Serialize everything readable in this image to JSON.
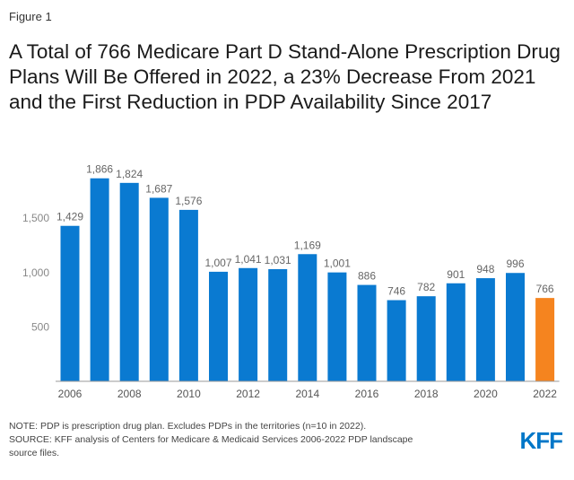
{
  "figure_label": "Figure 1",
  "title": "A Total of 766 Medicare Part D Stand-Alone Prescription Drug Plans Will Be Offered in 2022, a 23% Decrease From 2021 and the First Reduction in PDP Availability Since 2017",
  "notes": {
    "note": "NOTE: PDP is prescription drug plan. Excludes PDPs in the territories (n=10 in 2022).",
    "source_line1": "SOURCE: KFF analysis of Centers for Medicare & Medicaid Services 2006-2022 PDP landscape",
    "source_line2": "source files."
  },
  "logo_text": "KFF",
  "colors": {
    "bar": "#0a7ad1",
    "highlight": "#f5841f",
    "axis": "#888888",
    "label": "#666666"
  },
  "chart_data": {
    "type": "bar",
    "title": "A Total of 766 Medicare Part D Stand-Alone Prescription Drug Plans Will Be Offered in 2022, a 23% Decrease From 2021 and the First Reduction in PDP Availability Since 2017",
    "xlabel": "",
    "ylabel": "",
    "categories": [
      "2006",
      "2007",
      "2008",
      "2009",
      "2010",
      "2011",
      "2012",
      "2013",
      "2014",
      "2015",
      "2016",
      "2017",
      "2018",
      "2019",
      "2020",
      "2021",
      "2022"
    ],
    "values": [
      1429,
      1866,
      1824,
      1687,
      1576,
      1007,
      1041,
      1031,
      1169,
      1001,
      886,
      746,
      782,
      901,
      948,
      996,
      766
    ],
    "data_labels": [
      "1,429",
      "1,866",
      "1,824",
      "1,687",
      "1,576",
      "1,007",
      "1,041",
      "1,031",
      "1,169",
      "1,001",
      "886",
      "746",
      "782",
      "901",
      "948",
      "996",
      "766"
    ],
    "x_tick_labels": [
      "2006",
      "",
      "2008",
      "",
      "2010",
      "",
      "2012",
      "",
      "2014",
      "",
      "2016",
      "",
      "2018",
      "",
      "2020",
      "",
      "2022"
    ],
    "y_ticks": [
      500,
      1000,
      1500
    ],
    "y_tick_labels": [
      "500",
      "1,000",
      "1,500"
    ],
    "ylim": [
      0,
      2000
    ],
    "highlight_category": "2022",
    "grid": false,
    "legend": "none"
  }
}
